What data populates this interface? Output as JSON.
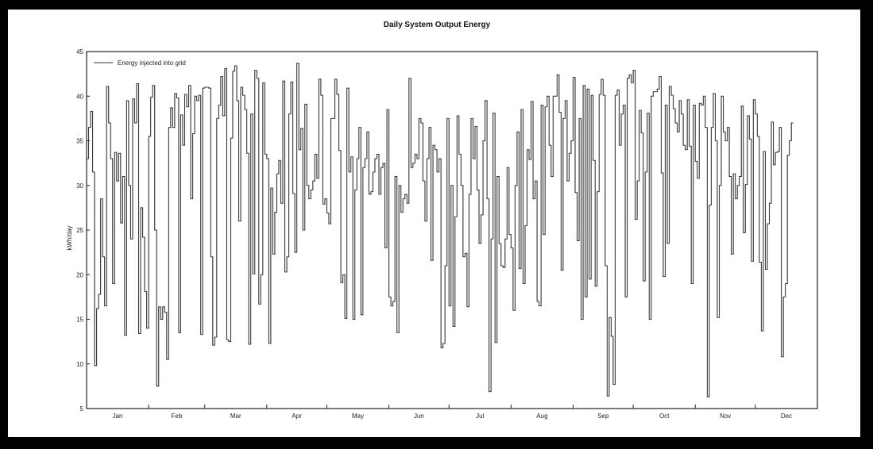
{
  "chart_data": {
    "type": "line",
    "title": "Daily System Output Energy",
    "xlabel": "",
    "ylabel": "kWh/day",
    "x_labels": [
      "Jan",
      "Feb",
      "Mar",
      "Apr",
      "May",
      "Jun",
      "Jul",
      "Aug",
      "Sep",
      "Oct",
      "Nov",
      "Dec"
    ],
    "y_ticks": [
      5,
      10,
      15,
      20,
      25,
      30,
      35,
      40,
      45
    ],
    "ylim": [
      5,
      45
    ],
    "xlim": [
      1,
      365
    ],
    "grid": false,
    "legend_position": "top-left",
    "line_style": "step",
    "series": [
      {
        "name": "Energy injected into grid",
        "color": "#333333",
        "values": [
          33.0,
          36.5,
          38.3,
          31.5,
          9.8,
          16.2,
          17.8,
          28.5,
          22.0,
          16.5,
          41.1,
          37.0,
          33.0,
          19.0,
          33.7,
          30.5,
          33.6,
          25.8,
          31.0,
          13.2,
          39.5,
          30.0,
          24.0,
          39.7,
          37.0,
          41.4,
          13.4,
          27.5,
          24.2,
          18.1,
          14.0,
          35.5,
          39.9,
          41.2,
          25.0,
          7.5,
          16.4,
          15.0,
          16.4,
          15.8,
          10.5,
          36.5,
          38.7,
          36.5,
          40.3,
          39.8,
          13.5,
          37.9,
          34.5,
          40.2,
          38.8,
          41.2,
          28.5,
          35.8,
          40.0,
          39.5,
          40.1,
          13.3,
          40.9,
          41.0,
          41.0,
          40.9,
          22.0,
          12.1,
          13.0,
          37.5,
          39.0,
          42.2,
          37.8,
          43.1,
          12.7,
          12.5,
          35.3,
          42.8,
          43.4,
          39.5,
          26.0,
          41.0,
          40.1,
          38.5,
          33.6,
          12.2,
          38.0,
          20.1,
          42.9,
          42.0,
          16.7,
          20.0,
          41.5,
          33.5,
          33.0,
          12.3,
          29.7,
          22.3,
          27.0,
          31.3,
          32.8,
          28.0,
          41.7,
          20.3,
          22.0,
          38.0,
          41.6,
          29.1,
          22.5,
          43.7,
          34.0,
          36.4,
          25.0,
          39.1,
          30.0,
          28.5,
          29.5,
          30.5,
          33.5,
          30.8,
          41.9,
          40.1,
          27.9,
          28.5,
          26.9,
          25.7,
          37.5,
          37.5,
          41.9,
          40.2,
          33.9,
          19.1,
          20.0,
          15.1,
          40.9,
          31.5,
          33.2,
          15.0,
          29.5,
          33.0,
          36.5,
          15.5,
          32.0,
          33.0,
          36.0,
          29.0,
          29.3,
          31.5,
          33.0,
          33.5,
          29.0,
          32.0,
          32.5,
          23.0,
          38.5,
          17.5,
          16.5,
          17.0,
          31.0,
          13.5,
          30.0,
          27.0,
          28.5,
          29.0,
          28.0,
          42.0,
          32.0,
          32.5,
          33.5,
          33.0,
          37.5,
          37.0,
          30.5,
          26.0,
          33.0,
          36.5,
          21.6,
          34.5,
          34.0,
          31.5,
          33.0,
          11.8,
          12.3,
          21.0,
          37.5,
          16.5,
          30.0,
          14.2,
          26.5,
          37.8,
          33.5,
          30.0,
          22.0,
          22.4,
          16.4,
          29.0,
          37.5,
          33.0,
          36.6,
          29.5,
          23.5,
          26.7,
          35.0,
          39.5,
          28.5,
          6.9,
          24.0,
          38.1,
          12.4,
          31.0,
          23.5,
          21.0,
          20.8,
          24.0,
          32.0,
          24.5,
          23.0,
          16.0,
          30.0,
          36.0,
          20.7,
          38.5,
          19.0,
          25.5,
          34.0,
          32.9,
          39.4,
          28.5,
          30.5,
          17.0,
          16.5,
          39.0,
          24.5,
          38.8,
          40.0,
          34.5,
          31.0,
          40.0,
          40.0,
          42.4,
          38.2,
          20.5,
          37.5,
          39.5,
          30.5,
          33.6,
          35.0,
          42.1,
          29.2,
          23.8,
          37.5,
          15.0,
          41.2,
          17.5,
          40.8,
          19.5,
          40.1,
          32.8,
          18.7,
          29.3,
          40.2,
          41.9,
          40.1,
          21.0,
          6.4,
          15.2,
          13.1,
          7.7,
          40.1,
          40.7,
          34.5,
          38.0,
          39.0,
          17.5,
          42.0,
          42.4,
          41.5,
          42.9,
          26.2,
          30.5,
          38.4,
          35.9,
          19.3,
          31.5,
          38.1,
          15.0,
          40.0,
          40.5,
          40.5,
          40.8,
          42.2,
          31.4,
          19.8,
          39.0,
          23.5,
          41.1,
          40.1,
          38.6,
          37.0,
          36.0,
          39.5,
          38.0,
          34.5,
          34.0,
          39.6,
          34.4,
          19.0,
          39.0,
          32.7,
          30.8,
          39.2,
          39.0,
          40.0,
          36.5,
          6.3,
          27.8,
          36.5,
          40.3,
          35.0,
          15.2,
          30.0,
          40.0,
          36.0,
          35.0,
          36.5,
          31.0,
          22.3,
          31.3,
          28.5,
          30.0,
          31.0,
          38.9,
          24.7,
          30.1,
          37.8,
          35.2,
          21.5,
          39.6,
          38.0,
          35.5,
          21.4,
          13.7,
          33.8,
          20.6,
          25.7,
          28.0,
          37.1,
          32.3,
          33.7,
          33.8,
          36.5,
          10.8,
          17.5,
          19.0,
          33.4,
          35.0,
          37.0
        ]
      }
    ]
  }
}
